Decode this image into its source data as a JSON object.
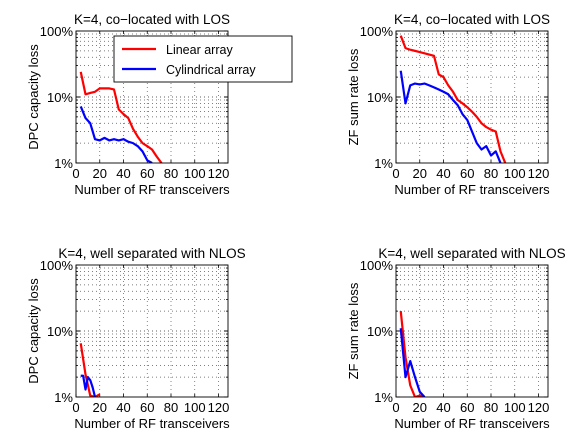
{
  "chart_data": [
    {
      "type": "line",
      "title": "K=4, co−located with LOS",
      "xlabel": "Number of RF transceivers",
      "ylabel": "DPC capacity loss",
      "xlim": [
        0,
        128
      ],
      "ylim": [
        1,
        100
      ],
      "yscale": "log",
      "xticks": [
        "0",
        "20",
        "40",
        "60",
        "80",
        "100",
        "120"
      ],
      "yticks": [
        "1%",
        "10%",
        "100%"
      ],
      "grid": true,
      "legend_position": "top-right",
      "series": [
        {
          "name": "Linear array",
          "color": "#ff0000",
          "x": [
            4,
            8,
            12,
            16,
            20,
            24,
            28,
            32,
            36,
            40,
            44,
            48,
            52,
            56,
            60,
            64,
            68,
            72
          ],
          "y": [
            24,
            11,
            11.5,
            12,
            13.5,
            13.5,
            13.5,
            13,
            6.5,
            5.5,
            4.8,
            3.3,
            2.5,
            2.0,
            1.8,
            1.6,
            1.25,
            1.0
          ]
        },
        {
          "name": "Cylindrical array",
          "color": "#0000ff",
          "x": [
            4,
            8,
            12,
            16,
            20,
            24,
            28,
            32,
            36,
            40,
            44,
            48,
            52,
            56,
            60,
            64
          ],
          "y": [
            7.2,
            4.8,
            4.0,
            2.3,
            2.2,
            2.4,
            2.2,
            2.3,
            2.2,
            2.3,
            2.1,
            2.0,
            1.8,
            1.5,
            1.1,
            1.0
          ]
        }
      ]
    },
    {
      "type": "line",
      "title": "K=4, co−located with LOS",
      "xlabel": "Number of RF transceivers",
      "ylabel": "ZF sum rate loss",
      "xlim": [
        0,
        128
      ],
      "ylim": [
        1,
        100
      ],
      "yscale": "log",
      "xticks": [
        "0",
        "20",
        "40",
        "60",
        "80",
        "100",
        "120"
      ],
      "yticks": [
        "1%",
        "10%",
        "100%"
      ],
      "grid": true,
      "series": [
        {
          "name": "Linear array",
          "color": "#ff0000",
          "x": [
            4,
            8,
            12,
            16,
            20,
            24,
            28,
            32,
            36,
            40,
            44,
            48,
            52,
            56,
            60,
            64,
            68,
            72,
            76,
            80,
            84,
            88,
            92
          ],
          "y": [
            85,
            55,
            52,
            50,
            48,
            46,
            44,
            42,
            22,
            20,
            15,
            12,
            9,
            8,
            7,
            6,
            5,
            4,
            3.5,
            3.2,
            3.0,
            1.5,
            1.0
          ]
        },
        {
          "name": "Cylindrical array",
          "color": "#0000ff",
          "x": [
            4,
            8,
            12,
            16,
            20,
            24,
            28,
            32,
            36,
            40,
            44,
            48,
            52,
            56,
            60,
            64,
            68,
            72,
            76,
            80,
            84,
            88
          ],
          "y": [
            25,
            8.0,
            15,
            16,
            15.5,
            16,
            15,
            14,
            13,
            12,
            11,
            9,
            7.5,
            5.5,
            4.5,
            3.0,
            2.0,
            1.6,
            1.8,
            1.3,
            1.5,
            1.0
          ]
        }
      ]
    },
    {
      "type": "line",
      "title": "K=4, well separated with NLOS",
      "xlabel": "Number of RF transceivers",
      "ylabel": "DPC capacity loss",
      "xlim": [
        0,
        128
      ],
      "ylim": [
        1,
        100
      ],
      "yscale": "log",
      "xticks": [
        "0",
        "20",
        "40",
        "60",
        "80",
        "100",
        "120"
      ],
      "yticks": [
        "1%",
        "10%",
        "100%"
      ],
      "grid": true,
      "series": [
        {
          "name": "Linear array",
          "color": "#ff0000",
          "x": [
            4,
            8,
            12,
            16,
            20
          ],
          "y": [
            6.5,
            2.2,
            1.05,
            1.0,
            1.1
          ]
        },
        {
          "name": "Cylindrical array",
          "color": "#0000ff",
          "x": [
            4,
            6,
            8,
            10,
            12,
            14,
            16
          ],
          "y": [
            2.1,
            2.1,
            1.3,
            2.0,
            1.8,
            1.4,
            1.0
          ]
        }
      ]
    },
    {
      "type": "line",
      "title": "K=4, well separated with NLOS",
      "xlabel": "Number of RF transceivers",
      "ylabel": "ZF sum rate loss",
      "xlim": [
        0,
        128
      ],
      "ylim": [
        1,
        100
      ],
      "yscale": "log",
      "xticks": [
        "0",
        "20",
        "40",
        "60",
        "80",
        "100",
        "120"
      ],
      "yticks": [
        "1%",
        "10%",
        "100%"
      ],
      "grid": true,
      "series": [
        {
          "name": "Linear array",
          "color": "#ff0000",
          "x": [
            4,
            8,
            12,
            16,
            20,
            24
          ],
          "y": [
            20,
            4.0,
            1.5,
            1.0,
            1.05,
            1.0
          ]
        },
        {
          "name": "Cylindrical array",
          "color": "#0000ff",
          "x": [
            4,
            8,
            12,
            16,
            20,
            24
          ],
          "y": [
            11,
            2.0,
            3.5,
            2.0,
            1.2,
            1.0
          ]
        }
      ]
    }
  ]
}
